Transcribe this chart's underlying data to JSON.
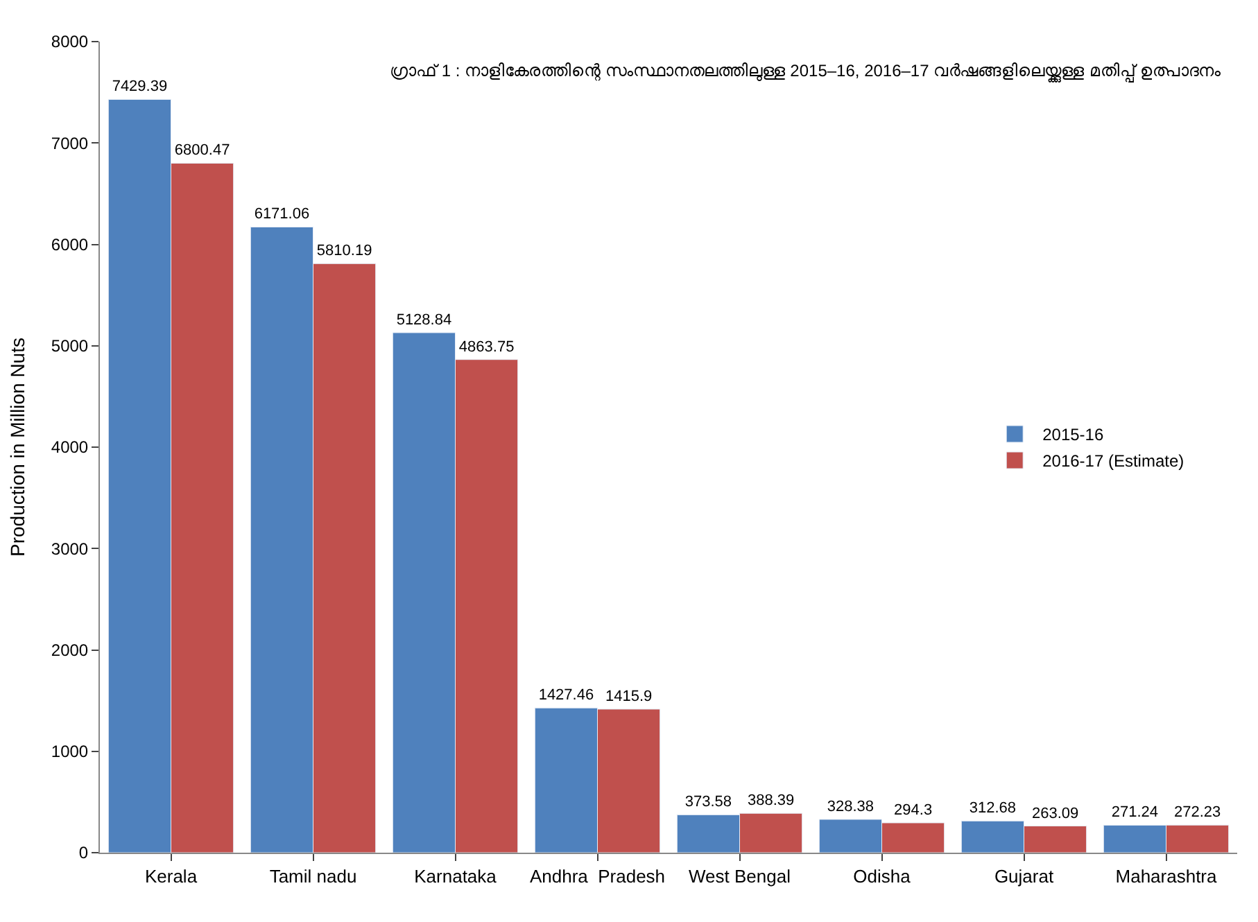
{
  "chart_data": {
    "type": "bar",
    "title": "ഗ്രാഫ് 1 : നാളികേരത്തിന്റെ സംസ്ഥാനതലത്തിലുള്ള 2015–16, 2016–17 വർഷങ്ങളിലെയ്ക്കുള്ള മതിപ്പ് ഉത്പാദനം",
    "ylabel": "Production in Million Nuts",
    "categories": [
      "Kerala",
      "Tamil nadu",
      "Karnataka",
      "Andhra  Pradesh",
      "West Bengal",
      "Odisha",
      "Gujarat",
      "Maharashtra"
    ],
    "series": [
      {
        "name": "2015-16",
        "color": "#4f81bd",
        "values": [
          7429.39,
          6171.06,
          5128.84,
          1427.46,
          373.58,
          328.38,
          312.68,
          271.24
        ]
      },
      {
        "name": "2016-17 (Estimate)",
        "color": "#c0504d",
        "values": [
          6800.47,
          5810.19,
          4863.75,
          1415.9,
          388.39,
          294.3,
          263.09,
          272.23
        ]
      }
    ],
    "ylim": [
      0,
      8000
    ],
    "yticks": [
      0,
      1000,
      2000,
      3000,
      4000,
      5000,
      6000,
      7000,
      8000
    ],
    "data_labels": true,
    "legend": "right"
  }
}
